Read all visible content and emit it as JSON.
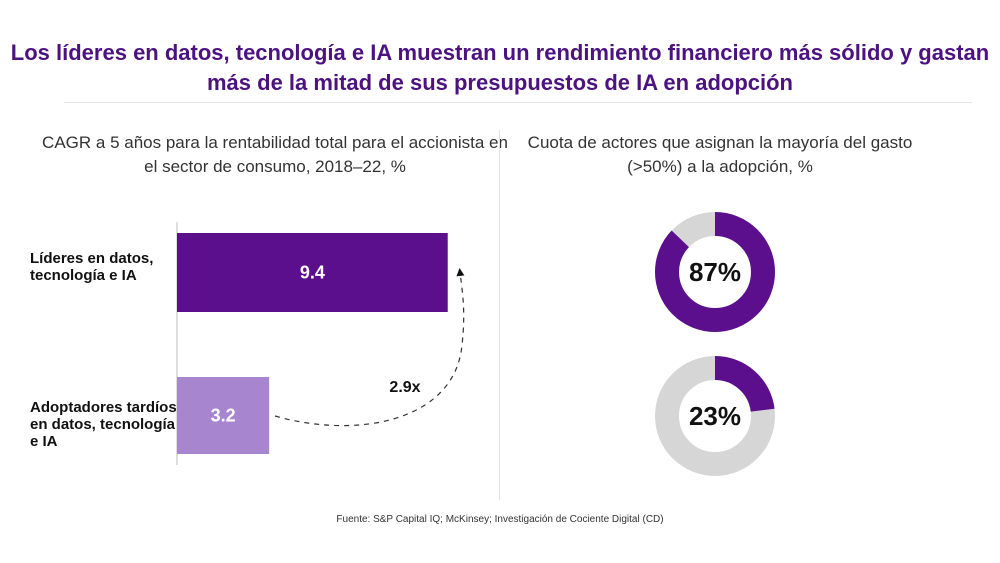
{
  "title": "Los líderes en datos, tecnología e IA muestran un rendimiento financiero más sólido y gastan más de la mitad de sus presupuestos de IA en adopción",
  "source": "Fuente: S&P Capital IQ; McKinsey; Investigación de Cociente Digital (CD)",
  "colors": {
    "title": "#4b1280",
    "leader": "#5b0f8c",
    "laggard": "#a886cf",
    "ring_track": "#d6d6d6"
  },
  "chart_data": [
    {
      "type": "bar",
      "orientation": "horizontal",
      "title": "CAGR a 5 años para la rentabilidad total para el accionista en el sector de consumo, 2018–22, %",
      "categories": [
        "Líderes en datos, tecnología e IA",
        "Adoptadores tardíos en datos, tecnología e IA"
      ],
      "values": [
        9.4,
        3.2
      ],
      "value_labels": [
        "9.4",
        "3.2"
      ],
      "xlim": [
        0,
        10
      ],
      "annotation": "2.9x",
      "grid": false
    },
    {
      "type": "pie",
      "variant": "donut",
      "title": "Cuota de actores que asignan la mayoría del gasto (>50%) a la adopción, %",
      "series": [
        {
          "name": "Líderes en datos, tecnología e IA",
          "value": 87,
          "label": "87%"
        },
        {
          "name": "Adoptadores tardíos en datos, tecnología e IA",
          "value": 23,
          "label": "23%"
        }
      ]
    }
  ]
}
